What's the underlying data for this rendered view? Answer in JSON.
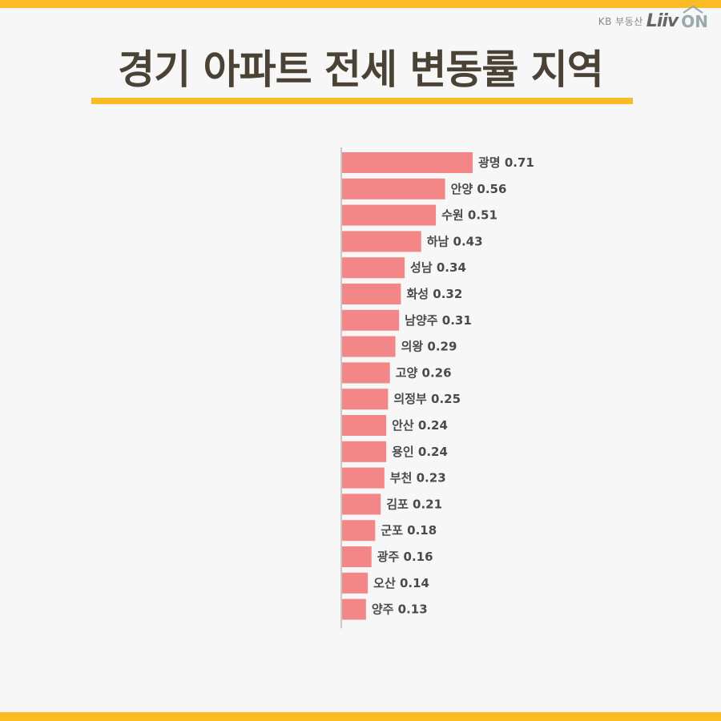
{
  "brand": {
    "kb_text": "KB 부동산",
    "liiv_text": "Liiv",
    "on_text": "ON"
  },
  "header": {
    "title": "경기 아파트 전세 변동률 지역"
  },
  "colors": {
    "accent": "#fbbb22",
    "bar": "#f38787",
    "axis": "#999999",
    "title": "#4a4235"
  },
  "chart_data": {
    "type": "bar",
    "orientation": "horizontal",
    "categories": [
      "광명",
      "안양",
      "수원",
      "하남",
      "성남",
      "화성",
      "남양주",
      "의왕",
      "고양",
      "의정부",
      "안산",
      "용인",
      "부천",
      "김포",
      "군포",
      "광주",
      "오산",
      "양주"
    ],
    "values": [
      0.71,
      0.56,
      0.51,
      0.43,
      0.34,
      0.32,
      0.31,
      0.29,
      0.26,
      0.25,
      0.24,
      0.24,
      0.23,
      0.21,
      0.18,
      0.16,
      0.14,
      0.13
    ],
    "labels": [
      "광명 0.71",
      "안양 0.56",
      "수원 0.51",
      "하남 0.43",
      "성남 0.34",
      "화성 0.32",
      "남양주 0.31",
      "의왕 0.29",
      "고양 0.26",
      "의정부 0.25",
      "안산 0.24",
      "용인 0.24",
      "부천 0.23",
      "김포 0.21",
      "군포 0.18",
      "광주 0.16",
      "오산 0.14",
      "양주 0.13"
    ],
    "title": "",
    "xlabel": "",
    "ylabel": "",
    "xlim": [
      0,
      0.71
    ],
    "grid": false,
    "legend": "none"
  }
}
